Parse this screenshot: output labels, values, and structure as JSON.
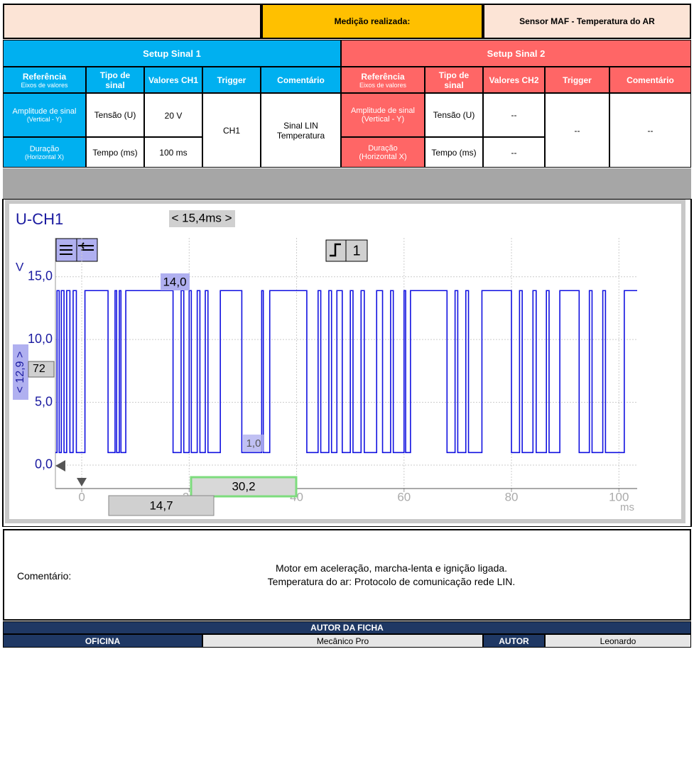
{
  "header": {
    "label": "Medição realizada:",
    "value": "Sensor MAF - Temperatura do AR"
  },
  "setup1": {
    "title": "Setup Sinal 1",
    "headers": {
      "ref": "Referência",
      "ref_sub": "Eixos de valores",
      "type": "Tipo de sinal",
      "values": "Valores CH1",
      "trigger": "Trigger",
      "comment": "Comentário"
    },
    "rows": [
      {
        "ref": "Amplitude de sinal",
        "ref_sub": "(Vertical - Y)",
        "type": "Tensão (U)",
        "values": "20 V"
      },
      {
        "ref": "Duração",
        "ref_sub": "(Horizontal X)",
        "type": "Tempo (ms)",
        "values": "100 ms"
      }
    ],
    "trigger": "CH1",
    "comment": "Sinal LIN Temperatura"
  },
  "setup2": {
    "title": "Setup Sinal 2",
    "headers": {
      "ref": "Referência",
      "ref_sub": "Eixos de valores",
      "type": "Tipo de sinal",
      "values": "Valores CH2",
      "trigger": "Trigger",
      "comment": "Comentário"
    },
    "rows": [
      {
        "ref": "Amplitude de sinal",
        "ref_sub": "(Vertical - Y)",
        "type": "Tensão (U)",
        "values": "--"
      },
      {
        "ref": "Duração",
        "ref_sub": "(Horizontal X)",
        "type": "Tempo (ms)",
        "values": "--"
      }
    ],
    "trigger": "--",
    "comment": "--"
  },
  "chart_data": {
    "type": "step",
    "channel": "U-CH1",
    "y_unit": "V",
    "x_unit": "ms",
    "annotations": {
      "period": "< 15,4ms >",
      "cursor_level": "14,0",
      "y_span": "< 12,9 >",
      "offset": "72",
      "low_marker": "1,0",
      "x_cursor": "30,2",
      "x_left": "14,7",
      "trigger": "1"
    },
    "xlim": [
      -4.9,
      103.4
    ],
    "ylim": [
      -1.87,
      18.1
    ],
    "xticks": [
      0,
      20,
      40,
      60,
      80,
      100
    ],
    "yticks": [
      {
        "value": 0,
        "label": "0,0"
      },
      {
        "value": 5,
        "label": "5,0"
      },
      {
        "value": 10,
        "label": "10,0"
      },
      {
        "value": 15,
        "label": "15,0"
      }
    ],
    "grid": true,
    "series": [
      {
        "name": "CH1",
        "color": "#1010e0",
        "x": [
          -4.9,
          -4.6,
          -4.2,
          -3.8,
          -3.3,
          -2.8,
          -2.2,
          -1.6,
          -1.0,
          0.6,
          4.9,
          6.2,
          6.5,
          7.0,
          7.3,
          8.2,
          17,
          18.5,
          19,
          20,
          20.4,
          21.5,
          22,
          23,
          23.5,
          25.8,
          29.8,
          33.5,
          33.8,
          35,
          41.9,
          44,
          44.5,
          46,
          46.5,
          47.5,
          48.5,
          50,
          50.5,
          52,
          52.6,
          54.9,
          56,
          57.5,
          58,
          60,
          60.3,
          61.2,
          68,
          69.5,
          70,
          71.5,
          72,
          74.5,
          80,
          81.5,
          82,
          84,
          84.6,
          86.5,
          87,
          89,
          92.6,
          94.5,
          95,
          97,
          97.5,
          101,
          103.4
        ],
        "values": [
          1,
          13.9,
          1,
          13.9,
          1,
          13.9,
          1,
          13.9,
          1,
          13.9,
          1,
          13.9,
          1,
          13.9,
          1,
          13.9,
          1,
          13.9,
          1,
          13.9,
          1,
          13.9,
          1,
          13.9,
          1,
          13.9,
          1,
          13.9,
          1,
          13.9,
          1,
          13.9,
          1,
          13.9,
          1,
          13.9,
          1,
          13.9,
          1,
          13.9,
          1,
          13.9,
          1,
          13.9,
          1,
          13.9,
          1,
          13.9,
          1,
          13.9,
          1,
          13.9,
          1,
          13.9,
          1,
          13.9,
          1,
          13.9,
          1,
          13.9,
          1,
          13.9,
          1,
          13.9,
          1,
          13.9,
          1,
          13.9,
          13.9
        ]
      }
    ]
  },
  "comment": {
    "label": "Comentário:",
    "lines": [
      "Motor em aceleração, marcha-lenta e ignição ligada.",
      "Temperatura do ar: Protocolo de comunicação rede  LIN."
    ]
  },
  "footer": {
    "title": "AUTOR DA FICHA",
    "workshop_label": "OFICINA",
    "workshop": "Mecânico Pro",
    "author_label": "AUTOR",
    "author": "Leonardo"
  }
}
